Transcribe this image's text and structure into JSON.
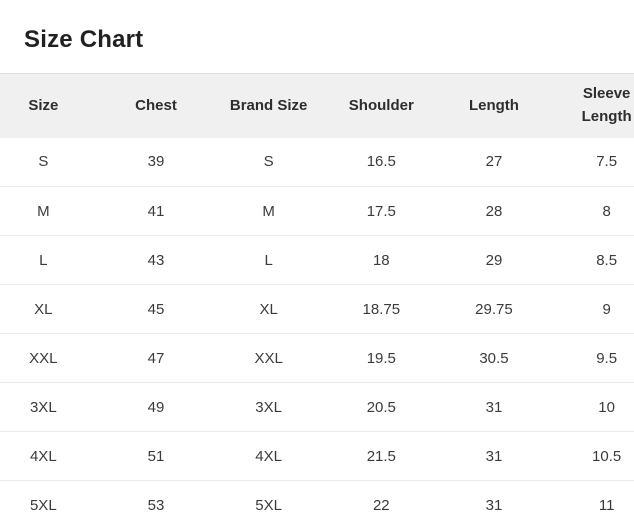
{
  "page": {
    "title": "Size Chart"
  },
  "table": {
    "columns": [
      "Size",
      "Chest",
      "Brand Size",
      "Shoulder",
      "Length",
      "Sleeve Length"
    ],
    "rows": [
      [
        "S",
        "39",
        "S",
        "16.5",
        "27",
        "7.5"
      ],
      [
        "M",
        "41",
        "M",
        "17.5",
        "28",
        "8"
      ],
      [
        "L",
        "43",
        "L",
        "18",
        "29",
        "8.5"
      ],
      [
        "XL",
        "45",
        "XL",
        "18.75",
        "29.75",
        "9"
      ],
      [
        "XXL",
        "47",
        "XXL",
        "19.5",
        "30.5",
        "9.5"
      ],
      [
        "3XL",
        "49",
        "3XL",
        "20.5",
        "31",
        "10"
      ],
      [
        "4XL",
        "51",
        "4XL",
        "21.5",
        "31",
        "10.5"
      ],
      [
        "5XL",
        "53",
        "5XL",
        "22",
        "31",
        "11"
      ]
    ]
  }
}
